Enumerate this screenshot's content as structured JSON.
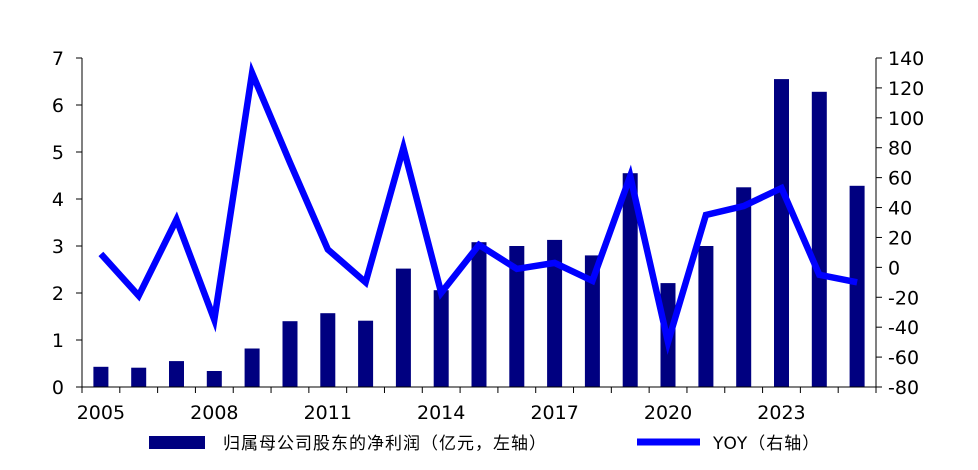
{
  "chart_data": {
    "type": "bar",
    "categories": [
      "2005",
      "2006",
      "2007",
      "2008",
      "2009",
      "2010",
      "2011",
      "2012",
      "2013",
      "2014",
      "2015",
      "2016",
      "2017",
      "2018",
      "2019",
      "2020",
      "2021",
      "2022",
      "2023",
      "2024",
      "2025"
    ],
    "x_tick_labels": [
      "2005",
      "2008",
      "2011",
      "2014",
      "2017",
      "2020",
      "2023"
    ],
    "series": [
      {
        "name": "归属母公司股东的净利润（亿元，左轴）",
        "type": "bar",
        "axis": "left",
        "color": "#000080",
        "values": [
          0.43,
          0.41,
          0.55,
          0.34,
          0.82,
          1.4,
          1.57,
          1.41,
          2.52,
          2.06,
          3.08,
          3.0,
          3.13,
          2.8,
          4.55,
          2.21,
          3.0,
          4.25,
          6.55,
          6.28,
          4.28
        ]
      },
      {
        "name": "YOY（右轴）",
        "type": "line",
        "axis": "right",
        "color": "#0000FF",
        "values": [
          9,
          -19,
          32,
          -35,
          130,
          70,
          12,
          -10,
          80,
          -17,
          15,
          -1,
          3,
          -9,
          61,
          -50,
          35,
          41,
          53,
          -5,
          -10
        ]
      }
    ],
    "y_left": {
      "min": 0,
      "max": 7,
      "ticks": [
        "0",
        "1",
        "2",
        "3",
        "4",
        "5",
        "6",
        "7"
      ]
    },
    "y_right": {
      "min": -80,
      "max": 140,
      "ticks": [
        "-80",
        "-60",
        "-40",
        "-20",
        "0",
        "20",
        "40",
        "60",
        "80",
        "100",
        "120",
        "140"
      ]
    },
    "grid": false,
    "legend_position": "bottom"
  }
}
